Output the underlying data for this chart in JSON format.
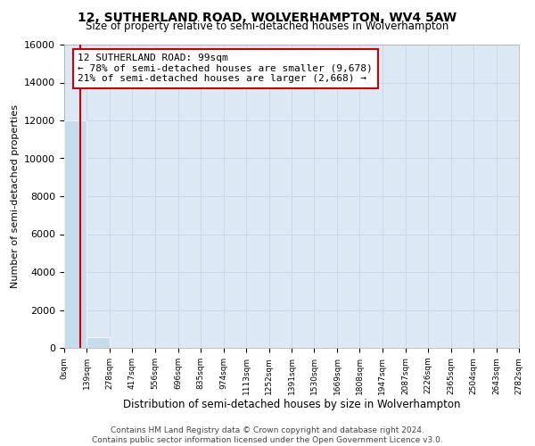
{
  "title_line1": "12, SUTHERLAND ROAD, WOLVERHAMPTON, WV4 5AW",
  "title_line2": "Size of property relative to semi-detached houses in Wolverhampton",
  "xlabel": "Distribution of semi-detached houses by size in Wolverhampton",
  "ylabel": "Number of semi-detached properties",
  "footer_line1": "Contains HM Land Registry data © Crown copyright and database right 2024.",
  "footer_line2": "Contains public sector information licensed under the Open Government Licence v3.0.",
  "bar_edges": [
    0,
    139,
    278,
    417,
    556,
    696,
    835,
    974,
    1113,
    1252,
    1391,
    1530,
    1669,
    1808,
    1947,
    2087,
    2226,
    2365,
    2504,
    2643,
    2782
  ],
  "bar_heights": [
    12000,
    550,
    0,
    0,
    0,
    0,
    0,
    0,
    0,
    0,
    0,
    0,
    0,
    0,
    0,
    0,
    0,
    0,
    0,
    0
  ],
  "bar_color": "#c5dced",
  "bar_edge_color": "#c5dced",
  "grid_color": "#c8d8e8",
  "bg_color": "#dce9f5",
  "property_line_x": 99,
  "property_line_color": "#cc0000",
  "annotation_line1": "12 SUTHERLAND ROAD: 99sqm",
  "annotation_line2": "← 78% of semi-detached houses are smaller (9,678)",
  "annotation_line3": "21% of semi-detached houses are larger (2,668) →",
  "annotation_box_color": "#cc0000",
  "ylim": [
    0,
    16000
  ],
  "yticks": [
    0,
    2000,
    4000,
    6000,
    8000,
    10000,
    12000,
    14000,
    16000
  ],
  "tick_labels": [
    "0sqm",
    "139sqm",
    "278sqm",
    "417sqm",
    "556sqm",
    "696sqm",
    "835sqm",
    "974sqm",
    "1113sqm",
    "1252sqm",
    "1391sqm",
    "1530sqm",
    "1669sqm",
    "1808sqm",
    "1947sqm",
    "2087sqm",
    "2226sqm",
    "2365sqm",
    "2504sqm",
    "2643sqm",
    "2782sqm"
  ]
}
